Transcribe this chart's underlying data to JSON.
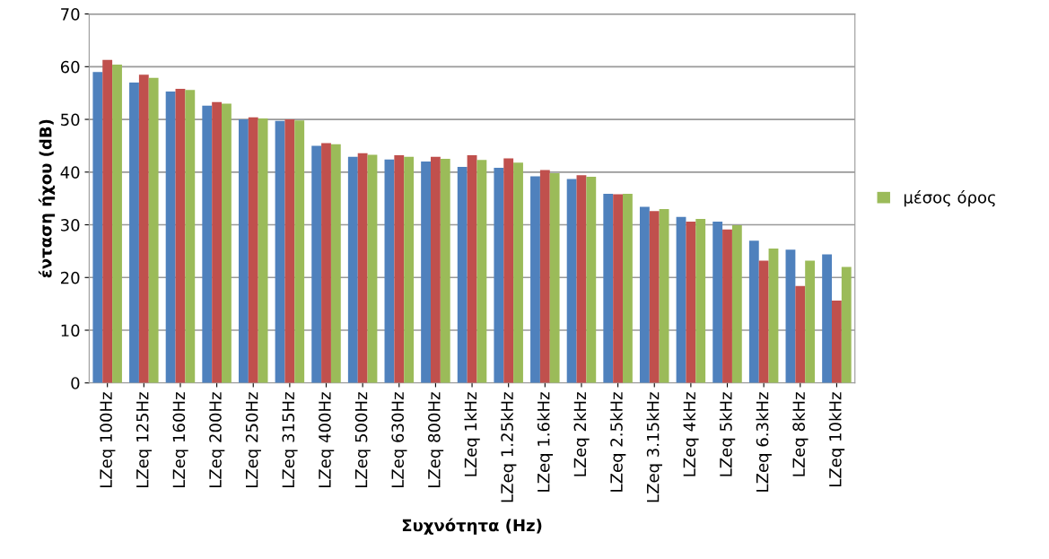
{
  "chart_data": {
    "type": "bar",
    "xlabel": "Συχνότητα (Hz)",
    "ylabel": "ένταση ήχου (dB)",
    "categories": [
      "LZeq 100Hz",
      "LZeq 125Hz",
      "LZeq 160Hz",
      "LZeq 200Hz",
      "LZeq 250Hz",
      "LZeq 315Hz",
      "LZeq 400Hz",
      "LZeq 500Hz",
      "LZeq 630Hz",
      "LZeq 800Hz",
      "LZeq 1kHz",
      "LZeq 1.25kHz",
      "LZeq 1.6kHz",
      "LZeq 2kHz",
      "LZeq 2.5kHz",
      "LZeq 3.15kHz",
      "LZeq 4kHz",
      "LZeq 5kHz",
      "LZeq 6.3kHz",
      "LZeq 8kHz",
      "LZeq 10kHz"
    ],
    "series": [
      {
        "color": "#4f81bd",
        "values": [
          59,
          57,
          55.3,
          52.6,
          50,
          49.7,
          45,
          42.9,
          42.4,
          42,
          41,
          40.8,
          39.2,
          38.7,
          35.9,
          33.4,
          31.5,
          30.6,
          27,
          25.3,
          24.4
        ]
      },
      {
        "color": "#c0504d",
        "values": [
          61.3,
          58.5,
          55.8,
          53.3,
          50.4,
          50,
          45.5,
          43.6,
          43.2,
          42.9,
          43.2,
          42.6,
          40.4,
          39.4,
          35.8,
          32.6,
          30.6,
          29.1,
          23.2,
          18.4,
          15.6
        ]
      },
      {
        "name": "μέσος όρος",
        "color": "#9bbb59",
        "values": [
          60.4,
          57.9,
          55.6,
          53,
          50.2,
          49.8,
          45.3,
          43.3,
          42.9,
          42.5,
          42.3,
          41.8,
          39.8,
          39.1,
          35.9,
          33,
          31.1,
          29.9,
          25.5,
          23.2,
          22
        ]
      }
    ],
    "ylim": [
      0,
      70
    ],
    "yticks": [
      0,
      10,
      20,
      30,
      40,
      50,
      60,
      70
    ],
    "grid": "y",
    "legend": "right"
  }
}
